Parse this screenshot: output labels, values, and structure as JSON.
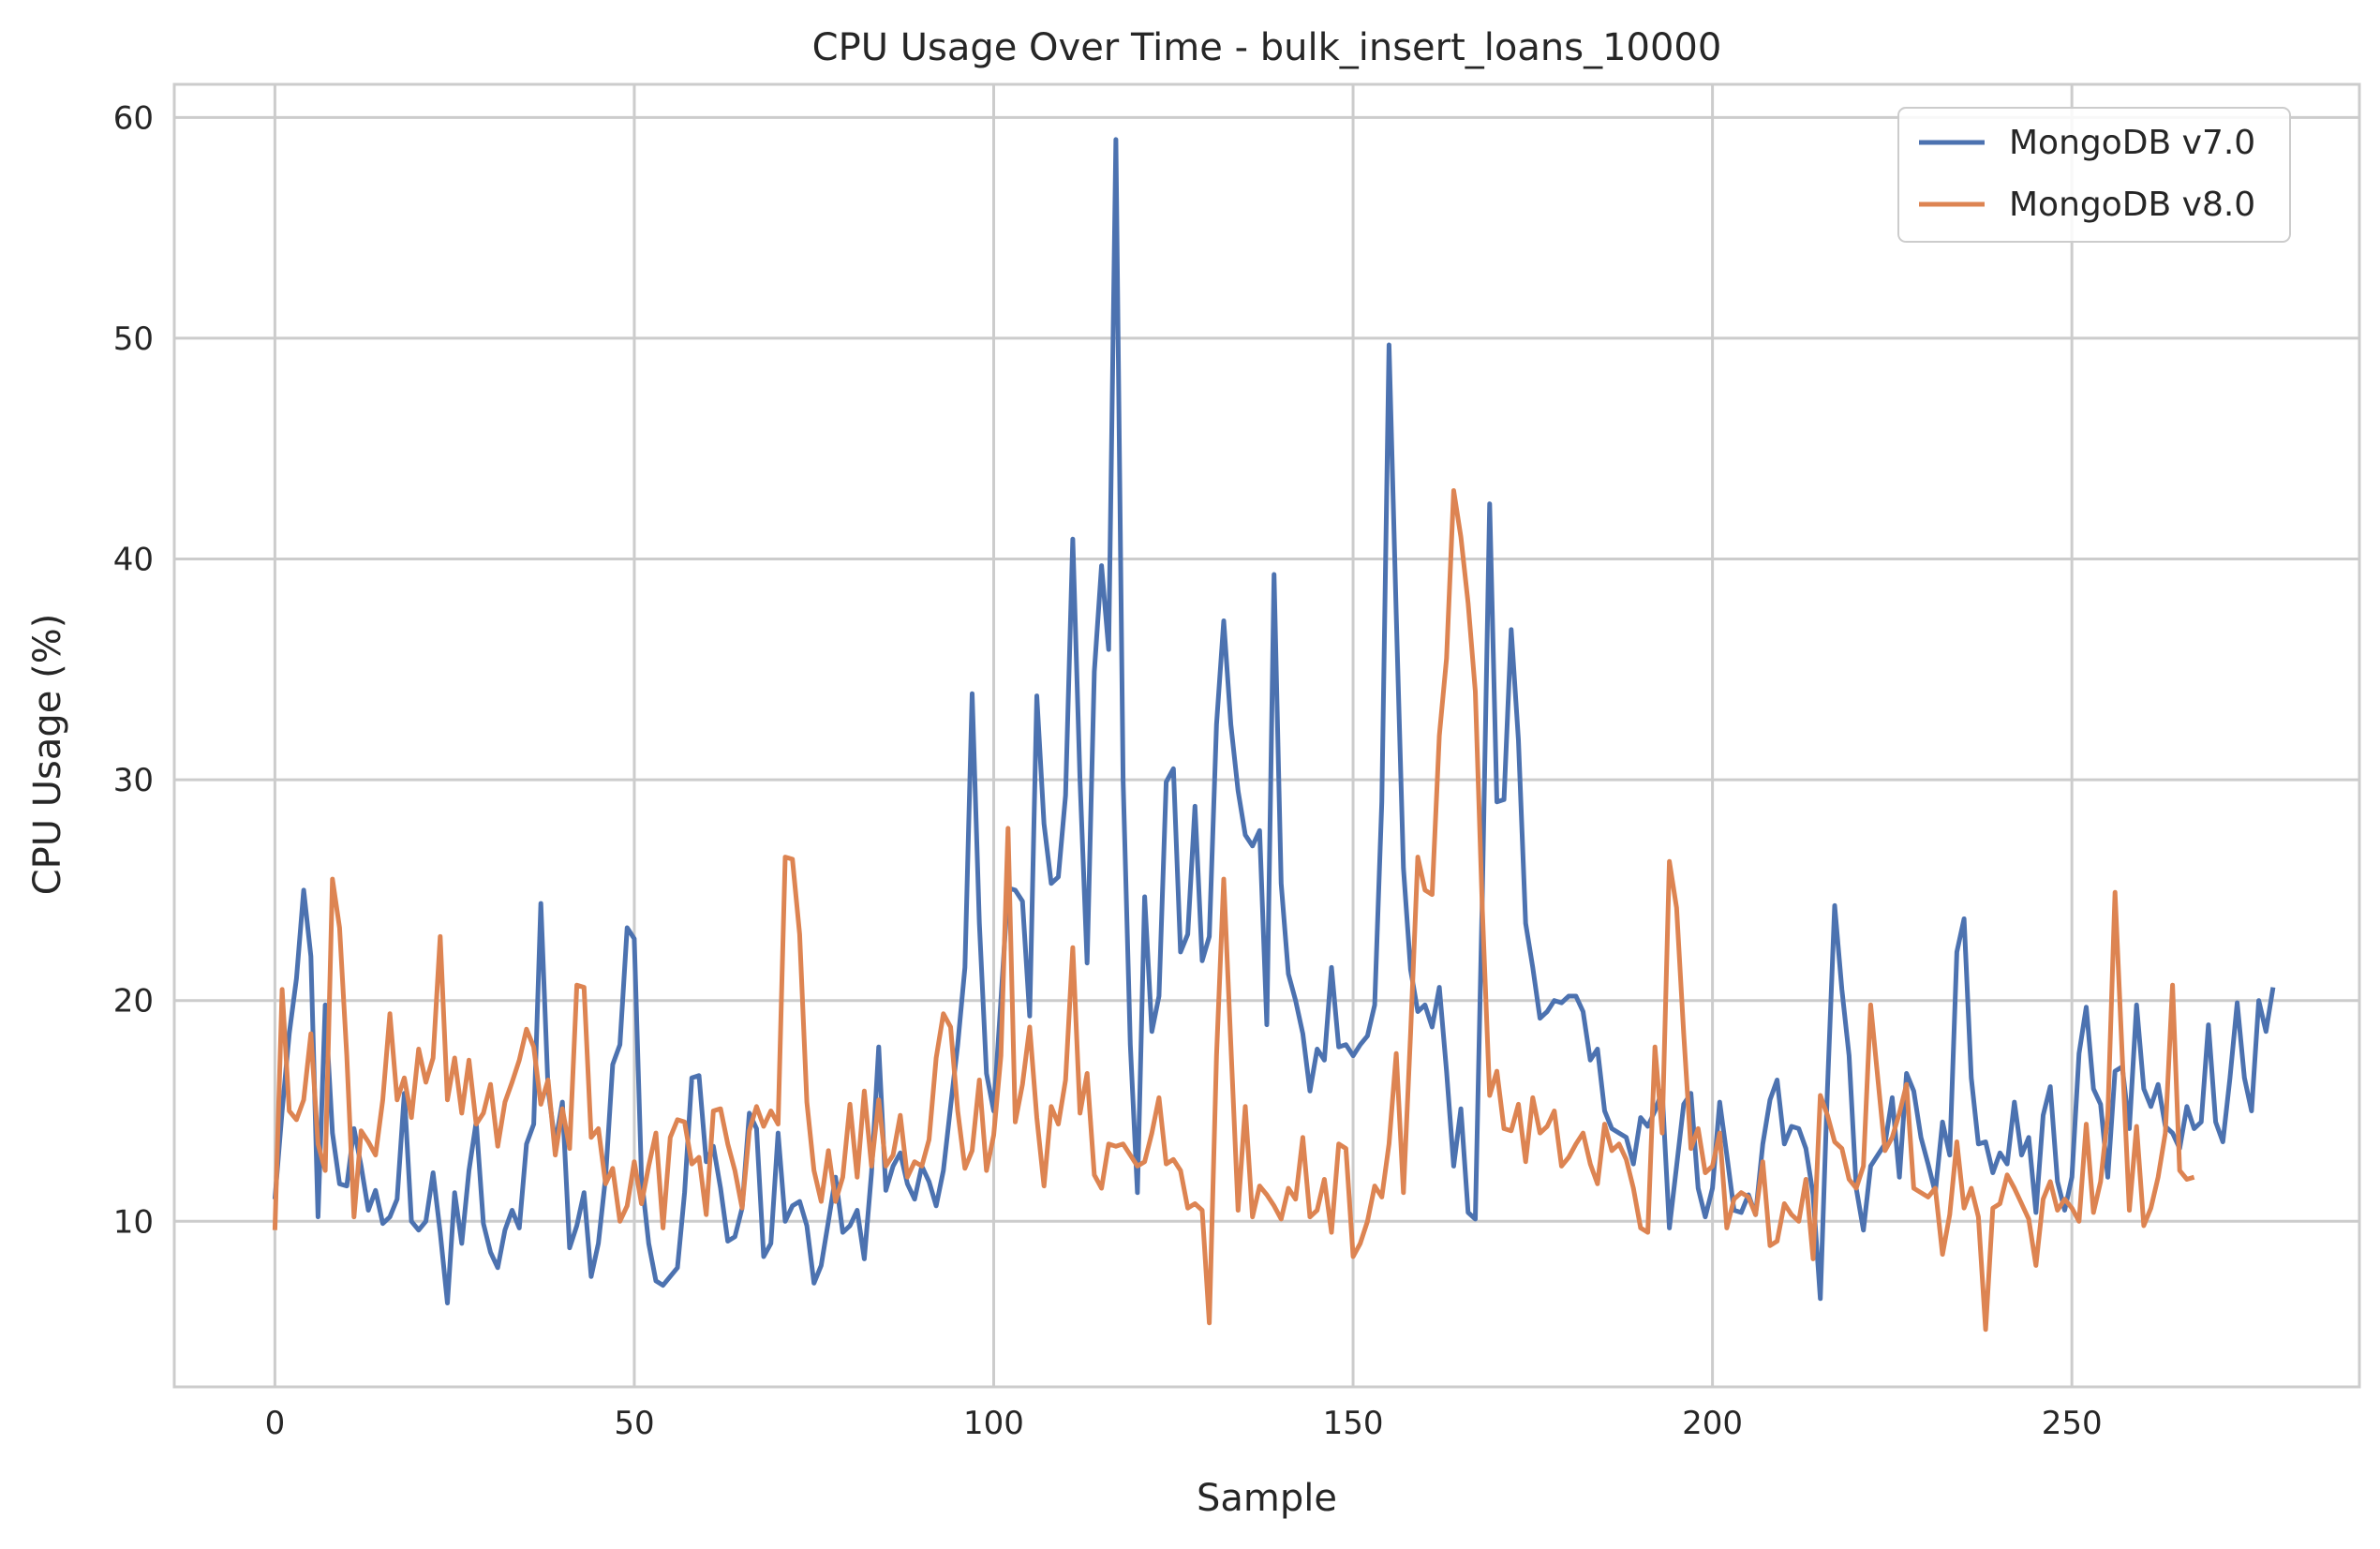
{
  "chart_data": {
    "type": "line",
    "title": "CPU Usage Over Time - bulk_insert_loans_10000",
    "xlabel": "Sample",
    "ylabel": "CPU Usage (%)",
    "xlim": [
      -14,
      290
    ],
    "ylim": [
      2.5,
      61.5
    ],
    "xticks": [
      0,
      50,
      100,
      150,
      200,
      250
    ],
    "yticks": [
      10,
      20,
      30,
      40,
      50,
      60
    ],
    "grid": true,
    "legend_position": "top-right",
    "series": [
      {
        "name": "MongoDB v7.0",
        "color": "#4C72B0",
        "values": [
          11.0,
          15.0,
          18.5,
          21.0,
          25.0,
          22.0,
          10.2,
          19.8,
          14.0,
          11.7,
          11.6,
          14.2,
          12.5,
          10.5,
          11.4,
          9.9,
          10.2,
          11.0,
          15.8,
          10.0,
          9.6,
          10.0,
          12.2,
          9.5,
          6.3,
          11.3,
          9.0,
          12.3,
          14.5,
          9.9,
          8.6,
          7.9,
          9.6,
          10.5,
          9.7,
          13.5,
          14.4,
          24.4,
          16.0,
          13.5,
          15.4,
          8.8,
          9.8,
          11.3,
          7.5,
          9.0,
          12.0,
          17.1,
          18.0,
          23.3,
          22.8,
          12.0,
          9.0,
          7.3,
          7.1,
          7.5,
          7.9,
          11.3,
          16.5,
          16.6,
          12.7,
          13.4,
          11.5,
          9.1,
          9.3,
          10.6,
          14.9,
          14.2,
          8.4,
          9.0,
          14.0,
          10.0,
          10.7,
          10.9,
          9.8,
          7.2,
          8.0,
          10.0,
          12.0,
          9.5,
          9.8,
          10.5,
          8.3,
          12.2,
          17.9,
          11.4,
          12.5,
          13.1,
          11.7,
          11.0,
          12.5,
          11.8,
          10.7,
          12.3,
          15.2,
          18.0,
          21.5,
          33.9,
          23.5,
          16.7,
          15.0,
          20.0,
          25.1,
          25.0,
          24.5,
          19.3,
          33.8,
          28.0,
          25.3,
          25.6,
          29.3,
          40.9,
          30.0,
          21.7,
          34.9,
          39.7,
          35.9,
          59.0,
          30.0,
          18.0,
          11.3,
          24.7,
          18.6,
          20.2,
          29.9,
          30.5,
          22.2,
          23.0,
          28.8,
          21.8,
          22.9,
          32.5,
          37.2,
          32.5,
          29.5,
          27.5,
          27.0,
          27.7,
          18.9,
          39.3,
          25.3,
          21.2,
          20.0,
          18.5,
          15.9,
          17.8,
          17.3,
          21.5,
          17.9,
          18.0,
          17.5,
          18.0,
          18.4,
          19.8,
          29.0,
          49.7,
          37.5,
          26.0,
          21.4,
          19.5,
          19.8,
          18.8,
          20.6,
          16.8,
          12.5,
          15.1,
          10.4,
          10.1,
          25.0,
          42.5,
          29.0,
          29.1,
          36.8,
          31.8,
          23.5,
          21.5,
          19.2,
          19.5,
          20.0,
          19.9,
          20.2,
          20.2,
          19.5,
          17.3,
          17.8,
          15.0,
          14.2,
          14.0,
          13.8,
          12.6,
          14.7,
          14.3,
          15.0,
          15.9,
          9.7,
          12.5,
          15.3,
          15.8,
          11.5,
          10.2,
          11.5,
          15.4,
          13.0,
          10.5,
          10.4,
          11.2,
          10.3,
          13.5,
          15.5,
          16.4,
          13.5,
          14.3,
          14.2,
          13.3,
          11.2,
          6.5,
          16.0,
          24.3,
          20.5,
          17.5,
          11.5,
          9.6,
          12.5,
          13.0,
          13.5,
          15.6,
          12.0,
          16.7,
          15.9,
          13.8,
          12.6,
          11.3,
          14.5,
          13.0,
          22.2,
          23.7,
          16.5,
          13.5,
          13.6,
          12.2,
          13.1,
          12.6,
          15.4,
          13.0,
          13.8,
          10.4,
          14.8,
          16.1,
          11.8,
          10.5,
          12.0,
          17.6,
          19.7,
          16.0,
          15.3,
          12.0,
          16.8,
          17.0,
          14.2,
          19.8,
          16.0,
          15.2,
          16.2,
          14.3,
          14.0,
          13.3,
          15.2,
          14.2,
          14.5,
          18.9,
          14.5,
          13.6,
          16.5,
          19.9,
          16.5,
          15.0,
          20.0,
          18.6,
          20.6
        ]
      },
      {
        "name": "MongoDB v8.0",
        "color": "#DD8452",
        "values": [
          9.6,
          20.5,
          15.0,
          14.6,
          15.5,
          18.5,
          13.5,
          12.3,
          25.5,
          23.3,
          17.5,
          10.2,
          14.1,
          13.6,
          13.0,
          15.5,
          19.4,
          15.5,
          16.5,
          14.7,
          17.8,
          16.3,
          17.4,
          22.9,
          15.5,
          17.4,
          14.9,
          17.3,
          14.4,
          14.9,
          16.2,
          13.4,
          15.4,
          16.3,
          17.3,
          18.7,
          17.9,
          15.3,
          16.4,
          13.0,
          15.1,
          13.3,
          20.7,
          20.6,
          13.8,
          14.2,
          11.7,
          12.4,
          10.0,
          10.7,
          12.7,
          10.8,
          12.5,
          14.0,
          9.7,
          13.8,
          14.6,
          14.5,
          12.6,
          12.9,
          10.3,
          15.0,
          15.1,
          13.5,
          12.3,
          10.6,
          14.1,
          15.2,
          14.3,
          15.0,
          14.4,
          26.5,
          26.4,
          23.0,
          15.4,
          12.3,
          10.9,
          13.2,
          10.9,
          12.0,
          15.3,
          12.0,
          15.9,
          12.5,
          15.5,
          12.5,
          13.0,
          14.8,
          12.0,
          12.7,
          12.5,
          13.7,
          17.4,
          19.4,
          18.8,
          15.0,
          12.4,
          13.2,
          16.4,
          12.3,
          13.9,
          17.5,
          27.8,
          14.5,
          16.2,
          18.8,
          14.7,
          11.6,
          15.2,
          14.4,
          16.4,
          22.4,
          14.9,
          16.7,
          12.1,
          11.5,
          13.5,
          13.4,
          13.5,
          13.0,
          12.5,
          12.7,
          14.0,
          15.6,
          12.6,
          12.8,
          12.3,
          10.6,
          10.8,
          10.5,
          5.4,
          17.5,
          25.5,
          18.0,
          10.5,
          15.2,
          10.2,
          11.6,
          11.2,
          10.7,
          10.1,
          11.5,
          11.0,
          13.8,
          10.2,
          10.5,
          11.9,
          9.5,
          13.5,
          13.3,
          8.4,
          9.0,
          10.0,
          11.6,
          11.1,
          13.5,
          17.6,
          11.3,
          18.5,
          26.5,
          25.0,
          24.8,
          32.0,
          35.5,
          43.1,
          41.0,
          38.0,
          34.0,
          24.0,
          15.7,
          16.8,
          14.2,
          14.1,
          15.3,
          12.7,
          15.6,
          14.0,
          14.3,
          15.0,
          12.5,
          12.9,
          13.5,
          14.0,
          12.6,
          11.7,
          14.4,
          13.2,
          13.5,
          12.8,
          11.5,
          9.7,
          9.5,
          17.9,
          14.0,
          26.3,
          24.2,
          18.5,
          13.3,
          14.2,
          12.2,
          12.5,
          14.0,
          9.7,
          11.0,
          11.3,
          11.1,
          10.3,
          12.7,
          8.9,
          9.1,
          10.8,
          10.3,
          10.0,
          11.9,
          8.3,
          15.7,
          14.8,
          13.6,
          13.3,
          11.9,
          11.5,
          12.5,
          19.8,
          16.5,
          13.2,
          13.8,
          14.9,
          16.2,
          11.5,
          11.3,
          11.1,
          11.5,
          8.5,
          10.3,
          13.6,
          10.6,
          11.5,
          10.2,
          5.1,
          10.6,
          10.8,
          12.1,
          11.5,
          10.8,
          10.1,
          8.0,
          11.0,
          11.8,
          10.5,
          11.0,
          10.6,
          10.0,
          14.4,
          10.4,
          11.8,
          14.8,
          24.9,
          17.5,
          10.5,
          14.3,
          9.8,
          10.6,
          12.0,
          14.0,
          20.7,
          12.3,
          11.9,
          12.0
        ]
      }
    ]
  }
}
